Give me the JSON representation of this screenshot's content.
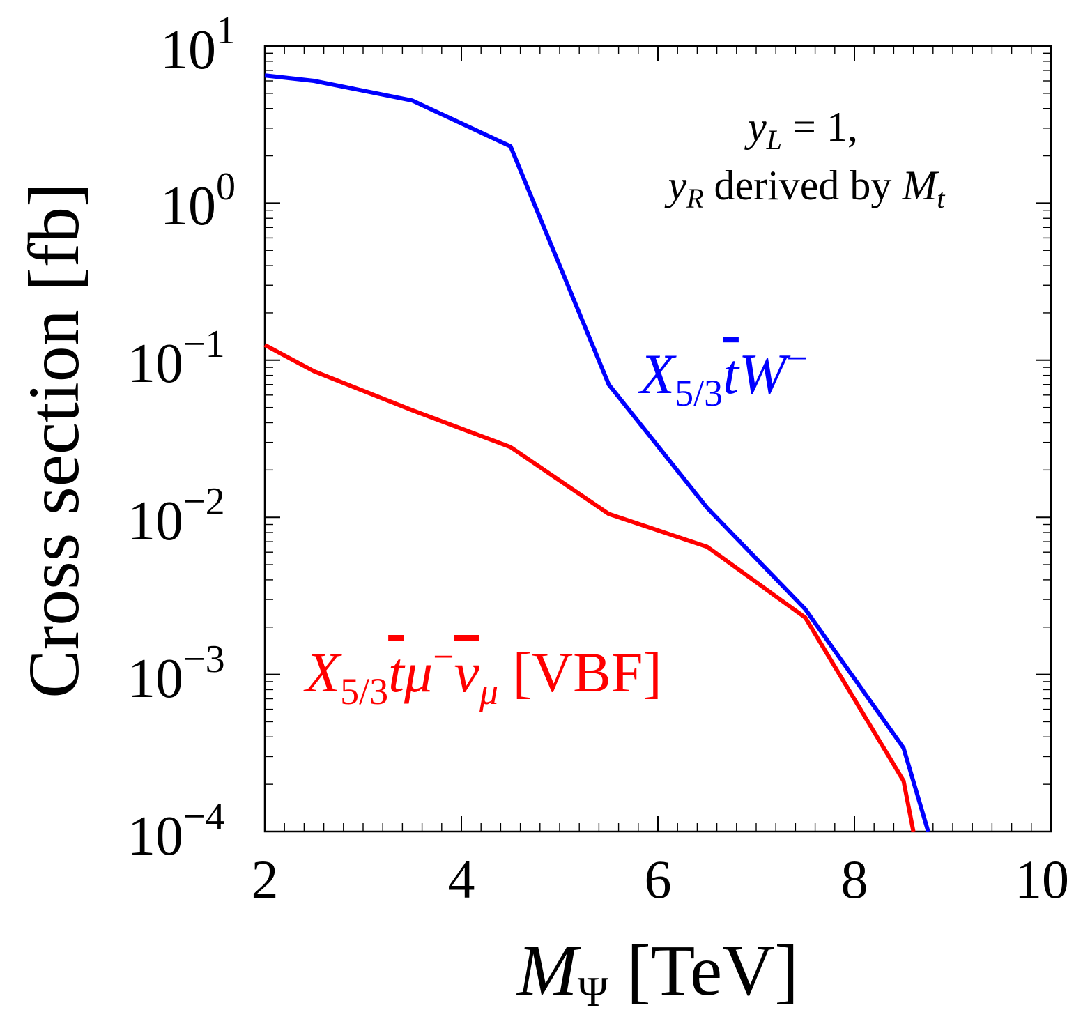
{
  "chart_data": {
    "type": "line",
    "xlabel": {
      "symbol": "M",
      "sub": "Ψ",
      "unit": "[TeV]"
    },
    "ylabel": "Cross section [fb]",
    "xlim": [
      2,
      10
    ],
    "ylim": [
      0.0001,
      10
    ],
    "yscale": "log",
    "grid": false,
    "x_ticks": [
      2,
      4,
      6,
      8,
      10
    ],
    "x_tick_labels": [
      "2",
      "4",
      "6",
      "8",
      "10"
    ],
    "y_ticks": [
      {
        "value": 10,
        "base": "10",
        "exp": "1"
      },
      {
        "value": 1,
        "base": "10",
        "exp": "0"
      },
      {
        "value": 0.1,
        "base": "10",
        "exp": "−1"
      },
      {
        "value": 0.01,
        "base": "10",
        "exp": "−2"
      },
      {
        "value": 0.001,
        "base": "10",
        "exp": "−3"
      },
      {
        "value": 0.0001,
        "base": "10",
        "exp": "−4"
      }
    ],
    "annotation": {
      "line1": {
        "y": "y",
        "ysub": "L",
        "rest": " = 1,"
      },
      "line2": {
        "y": "y",
        "ysub": "R",
        "mid": " derived by ",
        "m": "M",
        "msub": "t"
      }
    },
    "series": [
      {
        "label_parts": {
          "X": "X",
          "sub": "5/3",
          "tbar": "t",
          "rest": "W",
          "sup": "−"
        },
        "color": "#0000ff",
        "x": [
          2,
          2.5,
          3.5,
          4.5,
          5.5,
          6.5,
          7.5,
          8.5,
          8.75
        ],
        "y": [
          6.5,
          6.0,
          4.5,
          2.3,
          0.07,
          0.0115,
          0.0026,
          0.00034,
          0.0001
        ]
      },
      {
        "label_parts": {
          "X": "X",
          "sub": "5/3",
          "tbar": "t",
          "mu": "μ",
          "musup": "−",
          "nu": "ν",
          "nusub": "μ",
          "tag": " [VBF]"
        },
        "color": "#ff0000",
        "x": [
          2,
          2.5,
          3.5,
          4.5,
          5.5,
          6.5,
          7.5,
          8.5,
          8.6
        ],
        "y": [
          0.125,
          0.085,
          0.048,
          0.028,
          0.0105,
          0.0065,
          0.0023,
          0.00021,
          0.0001
        ]
      }
    ]
  }
}
